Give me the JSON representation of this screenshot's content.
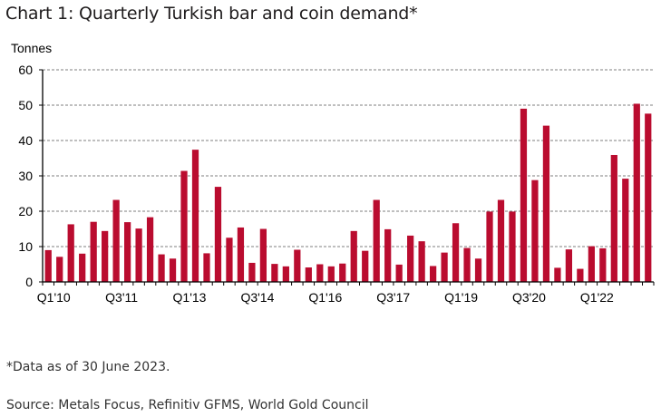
{
  "chart_data": {
    "type": "bar",
    "title": "Chart 1: Quarterly Turkish bar and coin demand*",
    "xlabel": "",
    "ylabel": "Tonnes",
    "ylim": [
      0,
      60
    ],
    "yticks": [
      0,
      10,
      20,
      30,
      40,
      50,
      60
    ],
    "grid": true,
    "legend": "none",
    "bar_color": "#BA0C2F",
    "categories": [
      "Q1'10",
      "Q2'10",
      "Q3'10",
      "Q4'10",
      "Q1'11",
      "Q2'11",
      "Q3'11",
      "Q4'11",
      "Q1'12",
      "Q2'12",
      "Q3'12",
      "Q4'12",
      "Q1'13",
      "Q2'13",
      "Q3'13",
      "Q4'13",
      "Q1'14",
      "Q2'14",
      "Q3'14",
      "Q4'14",
      "Q1'15",
      "Q2'15",
      "Q3'15",
      "Q4'15",
      "Q1'16",
      "Q2'16",
      "Q3'16",
      "Q4'16",
      "Q1'17",
      "Q2'17",
      "Q3'17",
      "Q4'17",
      "Q1'18",
      "Q2'18",
      "Q3'18",
      "Q4'18",
      "Q1'19",
      "Q2'19",
      "Q3'19",
      "Q4'19",
      "Q1'20",
      "Q2'20",
      "Q3'20",
      "Q4'20",
      "Q1'21",
      "Q2'21",
      "Q3'21",
      "Q4'21",
      "Q1'22",
      "Q2'22",
      "Q3'22",
      "Q4'22",
      "Q1'23",
      "Q2'23"
    ],
    "xtick_labels": [
      "Q1'10",
      "Q3'11",
      "Q1'13",
      "Q3'14",
      "Q1'16",
      "Q3'17",
      "Q1'19",
      "Q3'20",
      "Q1'22"
    ],
    "values": [
      9.0,
      7.1,
      16.3,
      8.0,
      17.0,
      14.4,
      23.2,
      16.9,
      15.1,
      18.3,
      7.8,
      6.6,
      31.4,
      37.4,
      8.1,
      26.9,
      12.5,
      15.4,
      5.4,
      15.0,
      5.1,
      4.4,
      9.1,
      4.1,
      5.0,
      4.4,
      5.2,
      14.4,
      8.8,
      23.2,
      14.9,
      4.9,
      13.1,
      11.5,
      4.5,
      8.3,
      16.6,
      9.6,
      6.6,
      19.9,
      23.2,
      19.9,
      49.0,
      28.8,
      44.2,
      4.0,
      9.2,
      3.7,
      10.1,
      9.5,
      35.9,
      29.2,
      50.4,
      47.6
    ]
  },
  "footnote": "*Data as of 30 June 2023.",
  "source": "Source: Metals Focus, Refinitiv GFMS, World Gold Council"
}
